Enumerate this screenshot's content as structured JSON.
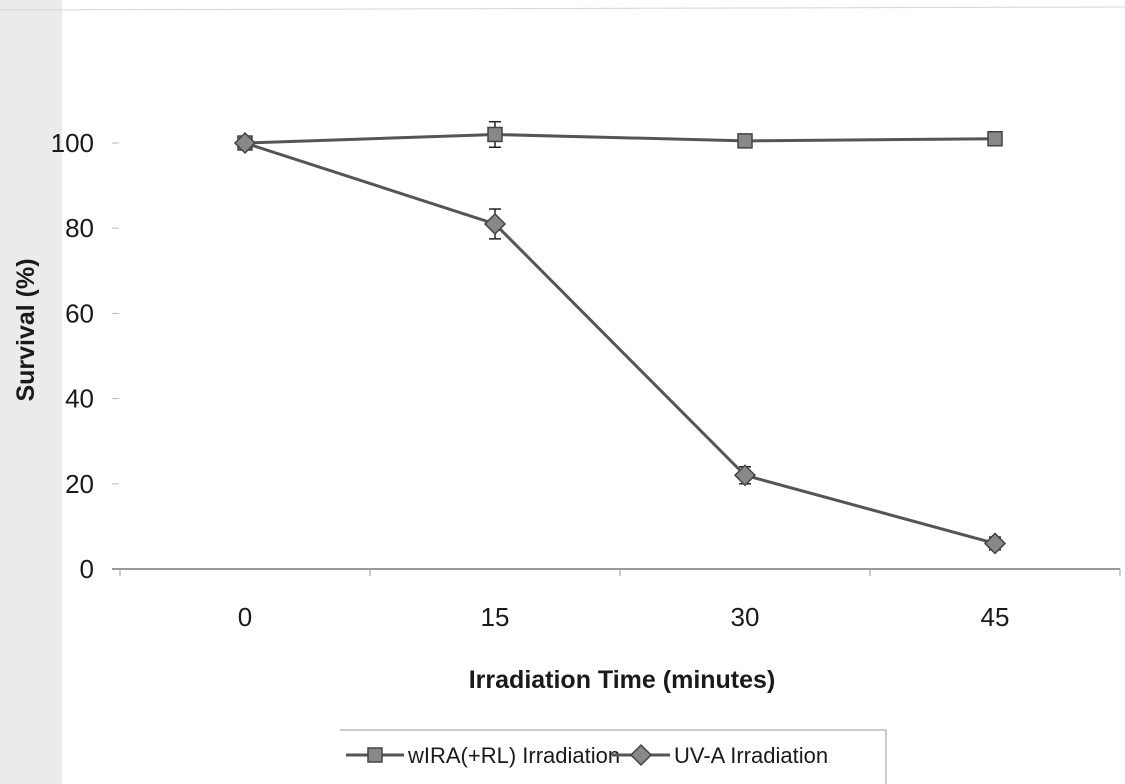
{
  "chart_data": {
    "type": "line",
    "title": "",
    "xlabel": "Irradiation Time (minutes)",
    "ylabel": "Survival (%)",
    "categories": [
      "0",
      "15",
      "30",
      "45"
    ],
    "x": [
      0,
      15,
      30,
      45
    ],
    "yticks": [
      "0",
      "20",
      "40",
      "60",
      "80",
      "100"
    ],
    "ylim": [
      0,
      100
    ],
    "grid": false,
    "legend_position": "bottom",
    "series": [
      {
        "name": "wIRA(+RL) Irradiation",
        "marker": "square",
        "values": [
          100,
          102,
          100.5,
          101
        ],
        "errors": [
          0,
          3,
          0.8,
          1
        ]
      },
      {
        "name": "UV-A Irradiation",
        "marker": "diamond",
        "values": [
          100,
          81,
          22,
          6
        ],
        "errors": [
          0,
          3.5,
          2,
          1.5
        ]
      }
    ]
  },
  "colors": {
    "line": "#555555",
    "marker_fill": "#888888",
    "marker_stroke": "#444444",
    "axis": "#333333"
  }
}
